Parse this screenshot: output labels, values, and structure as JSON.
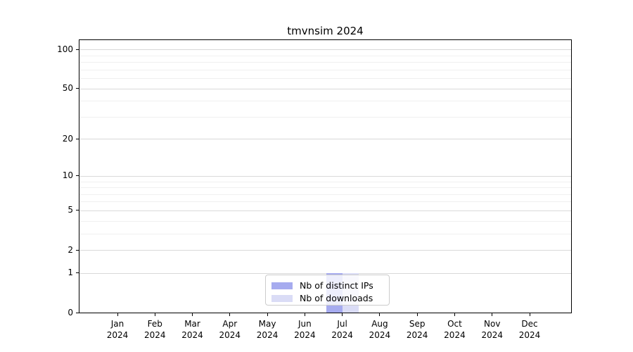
{
  "figure": {
    "background": "#ffffff"
  },
  "chart_data": {
    "type": "bar",
    "title": "tmvnsim 2024",
    "x_tick_months": [
      "Jan",
      "Feb",
      "Mar",
      "Apr",
      "May",
      "Jun",
      "Jul",
      "Aug",
      "Sep",
      "Oct",
      "Nov",
      "Dec"
    ],
    "x_tick_year": "2024",
    "series": [
      {
        "name": "Nb of distinct IPs",
        "color": "#a6abef",
        "values": [
          0,
          0,
          0,
          0,
          0,
          0,
          1,
          0,
          0,
          0,
          0,
          0
        ]
      },
      {
        "name": "Nb of downloads",
        "color": "#dadcf6",
        "values": [
          0,
          0,
          0,
          0,
          0,
          0,
          1,
          0,
          0,
          0,
          0,
          0
        ]
      }
    ],
    "y_scale": "log1p",
    "y_major_ticks": [
      0,
      1,
      2,
      5,
      10,
      20,
      50,
      100
    ],
    "y_minor_gridlines": [
      3,
      4,
      6,
      7,
      8,
      9,
      30,
      40,
      60,
      70,
      80,
      90
    ],
    "ylim": [
      0,
      118
    ],
    "grid": {
      "orientation": "horizontal",
      "major_color": "#d9d9d9",
      "minor_color": "#f0f0f0"
    },
    "legend": {
      "position": "lower center inside",
      "frame_alpha": 0.8
    }
  }
}
